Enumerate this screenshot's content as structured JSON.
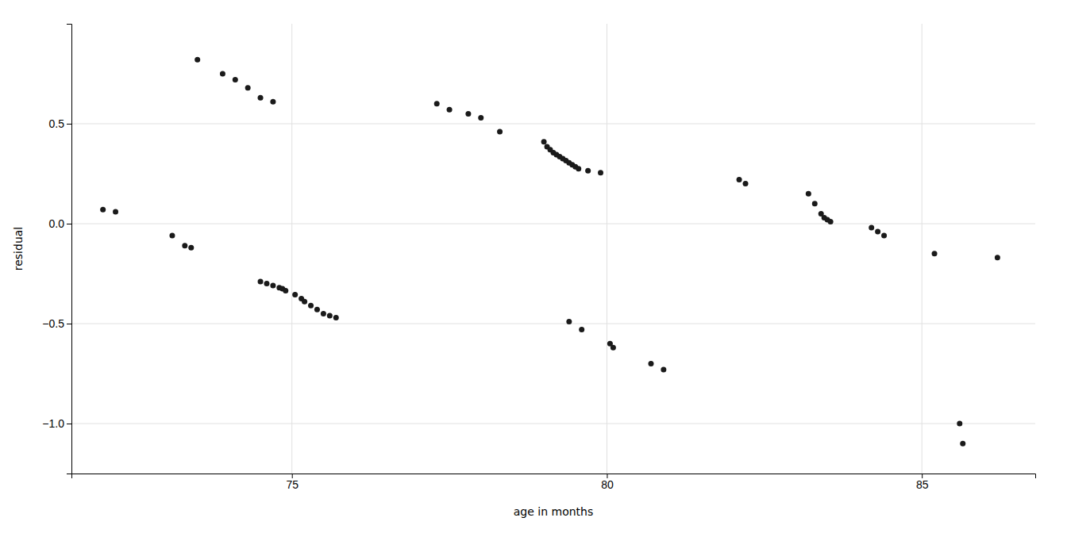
{
  "chart_data": {
    "type": "scatter",
    "xlabel": "age in months",
    "ylabel": "residual",
    "x": [
      72.0,
      72.2,
      73.1,
      73.3,
      73.4,
      73.5,
      73.9,
      74.1,
      74.3,
      74.5,
      74.7,
      74.5,
      74.6,
      74.7,
      74.8,
      74.85,
      74.9,
      75.05,
      75.15,
      75.2,
      75.3,
      75.4,
      75.5,
      75.6,
      75.7,
      77.3,
      77.5,
      77.8,
      78.0,
      78.3,
      79.0,
      79.05,
      79.1,
      79.15,
      79.2,
      79.25,
      79.3,
      79.35,
      79.4,
      79.45,
      79.5,
      79.55,
      79.7,
      79.9,
      79.4,
      79.6,
      80.05,
      80.1,
      80.7,
      80.9,
      82.1,
      82.2,
      83.2,
      83.3,
      83.4,
      83.45,
      83.5,
      83.55,
      84.2,
      84.3,
      84.4,
      85.2,
      85.6,
      85.65,
      86.2
    ],
    "y": [
      0.07,
      0.06,
      -0.06,
      -0.11,
      -0.12,
      0.82,
      0.75,
      0.72,
      0.68,
      0.63,
      0.61,
      -0.29,
      -0.3,
      -0.31,
      -0.32,
      -0.325,
      -0.335,
      -0.355,
      -0.375,
      -0.39,
      -0.41,
      -0.43,
      -0.45,
      -0.46,
      -0.47,
      0.6,
      0.57,
      0.55,
      0.53,
      0.46,
      0.41,
      0.385,
      0.37,
      0.355,
      0.345,
      0.335,
      0.325,
      0.315,
      0.305,
      0.295,
      0.285,
      0.275,
      0.265,
      0.255,
      -0.49,
      -0.53,
      -0.6,
      -0.62,
      -0.7,
      -0.73,
      0.22,
      0.2,
      0.15,
      0.1,
      0.05,
      0.03,
      0.02,
      0.01,
      -0.02,
      -0.04,
      -0.06,
      -0.15,
      -1.0,
      -1.1,
      -0.17
    ],
    "xlim": [
      71.5,
      86.8
    ],
    "ylim": [
      -1.25,
      1.0
    ],
    "xticks": [
      75,
      80,
      85
    ],
    "yticks": [
      0.5,
      {
        "value": 0.0,
        "label": "0.0"
      },
      {
        "value": -0.5,
        "label": "−0.5"
      },
      {
        "value": -1.0,
        "label": "−1.0"
      }
    ],
    "color": "#1a1a1a",
    "grid": true
  }
}
